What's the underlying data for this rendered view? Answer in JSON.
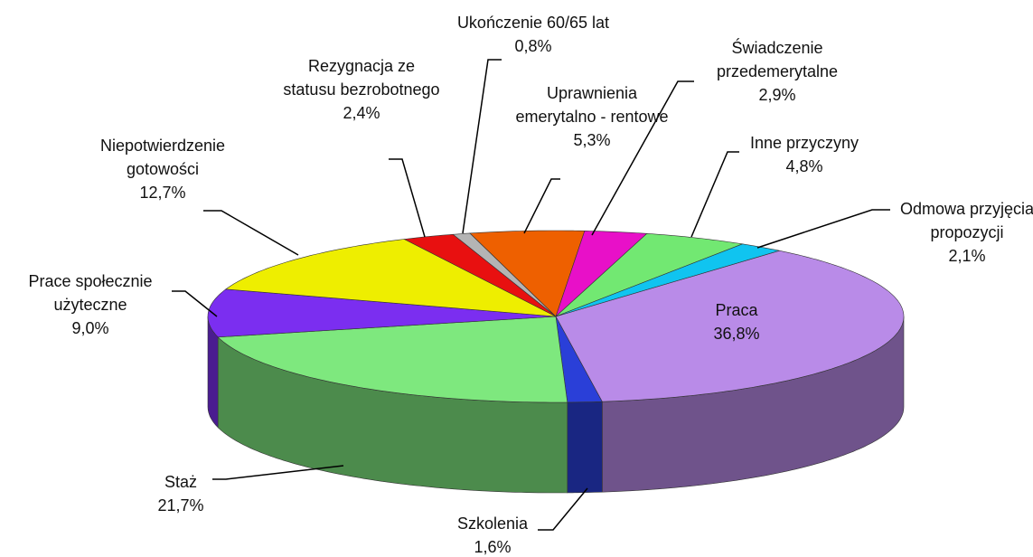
{
  "chart_data": {
    "type": "pie",
    "categories": [
      "Praca",
      "Szkolenia",
      "Staż",
      "Prace społecznie użyteczne",
      "Niepotwierdzenie gotowości",
      "Rezygnacja ze statusu bezrobotnego",
      "Ukończenie 60/65 lat",
      "Uprawnienia emerytalno - rentowe",
      "Świadczenie przedemerytalne",
      "Inne przyczyny",
      "Odmowa przyjęcia propozycji"
    ],
    "values": [
      36.8,
      1.6,
      21.7,
      9.0,
      12.7,
      2.4,
      0.8,
      5.3,
      2.9,
      4.8,
      2.1
    ],
    "value_labels": [
      "36,8%",
      "1,6%",
      "21,7%",
      "9,0%",
      "12,7%",
      "2,4%",
      "0,8%",
      "5,3%",
      "2,9%",
      "4,8%",
      "2,1%"
    ],
    "colors": [
      "#b98be8",
      "#2a3fd8",
      "#7ee87e",
      "#7b2ef0",
      "#eeee00",
      "#e81010",
      "#b4b4b4",
      "#ee6000",
      "#e810c8",
      "#72e872",
      "#10c4f0"
    ]
  }
}
